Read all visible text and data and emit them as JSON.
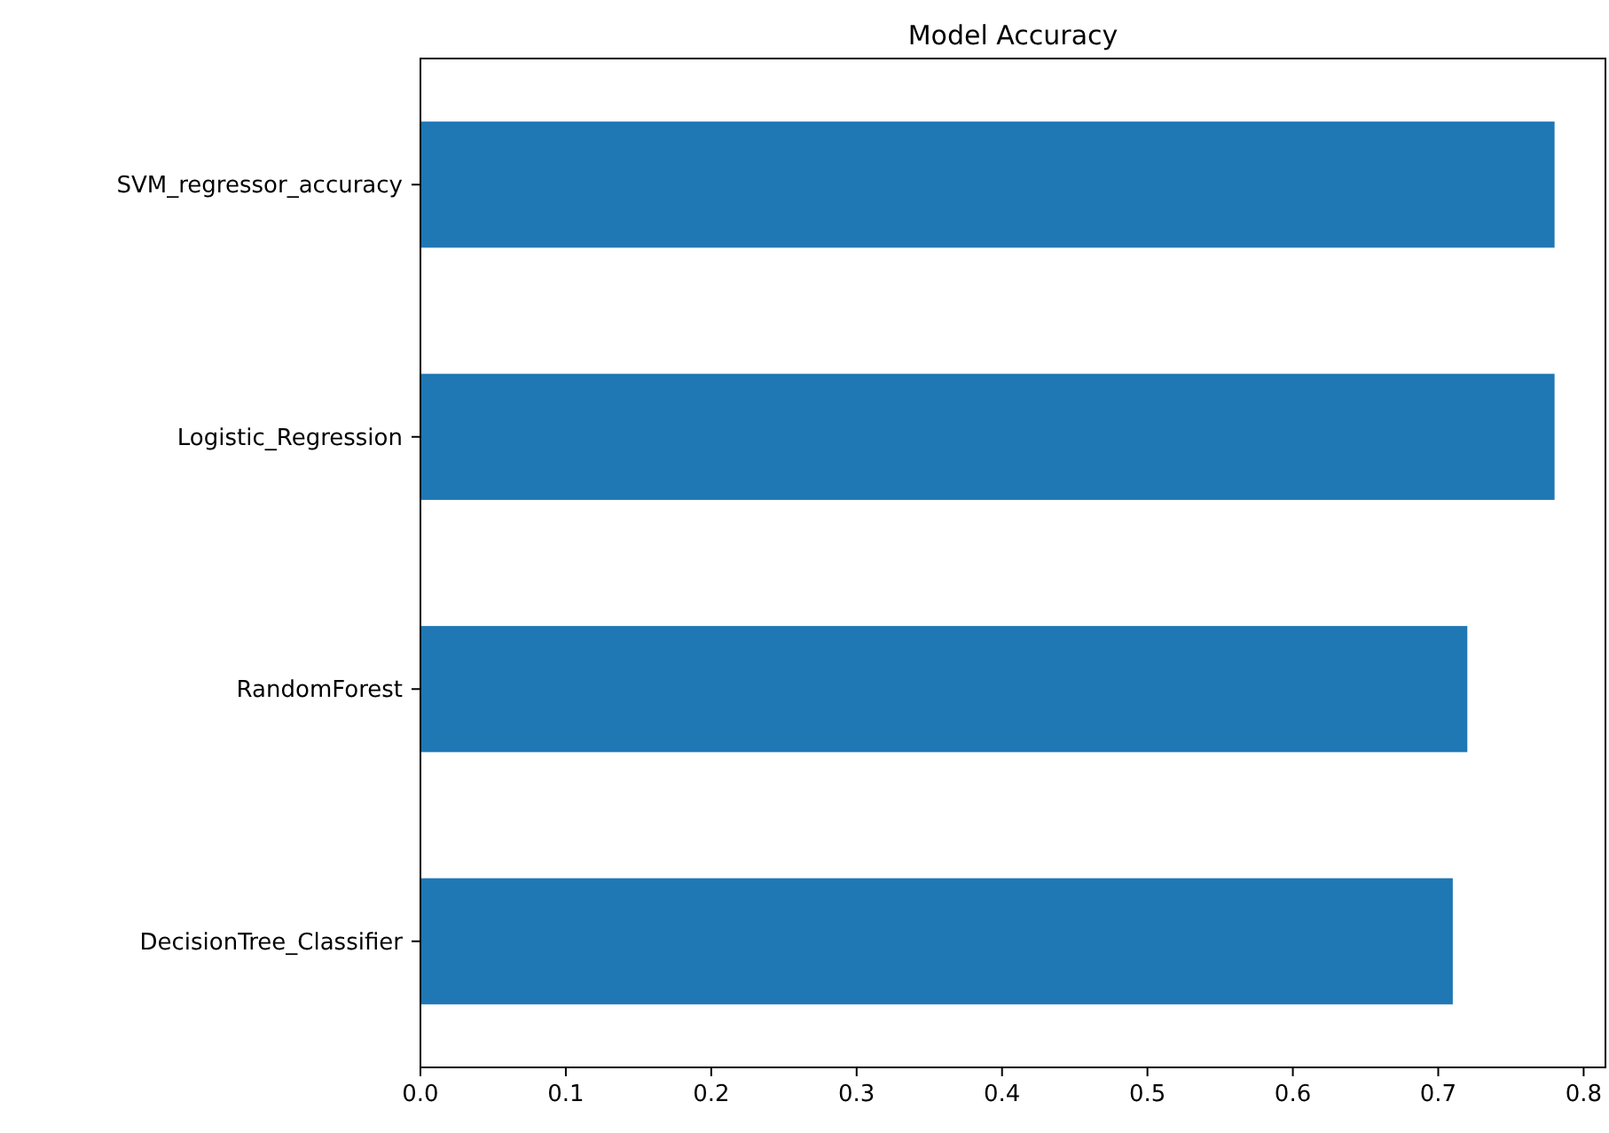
{
  "chart_data": {
    "type": "bar",
    "orientation": "horizontal",
    "title": "Model Accuracy",
    "categories": [
      "SVM_regressor_accuracy",
      "Logistic_Regression",
      "RandomForest",
      "DecisionTree_Classifier"
    ],
    "values": [
      0.78,
      0.78,
      0.72,
      0.71
    ],
    "color": "#1f77b4",
    "xlim": [
      0,
      0.815
    ],
    "xticks": [
      {
        "value": 0,
        "label": "0.0"
      },
      0.1,
      0.2,
      0.3,
      0.4,
      0.5,
      0.6,
      0.7,
      0.8
    ]
  }
}
